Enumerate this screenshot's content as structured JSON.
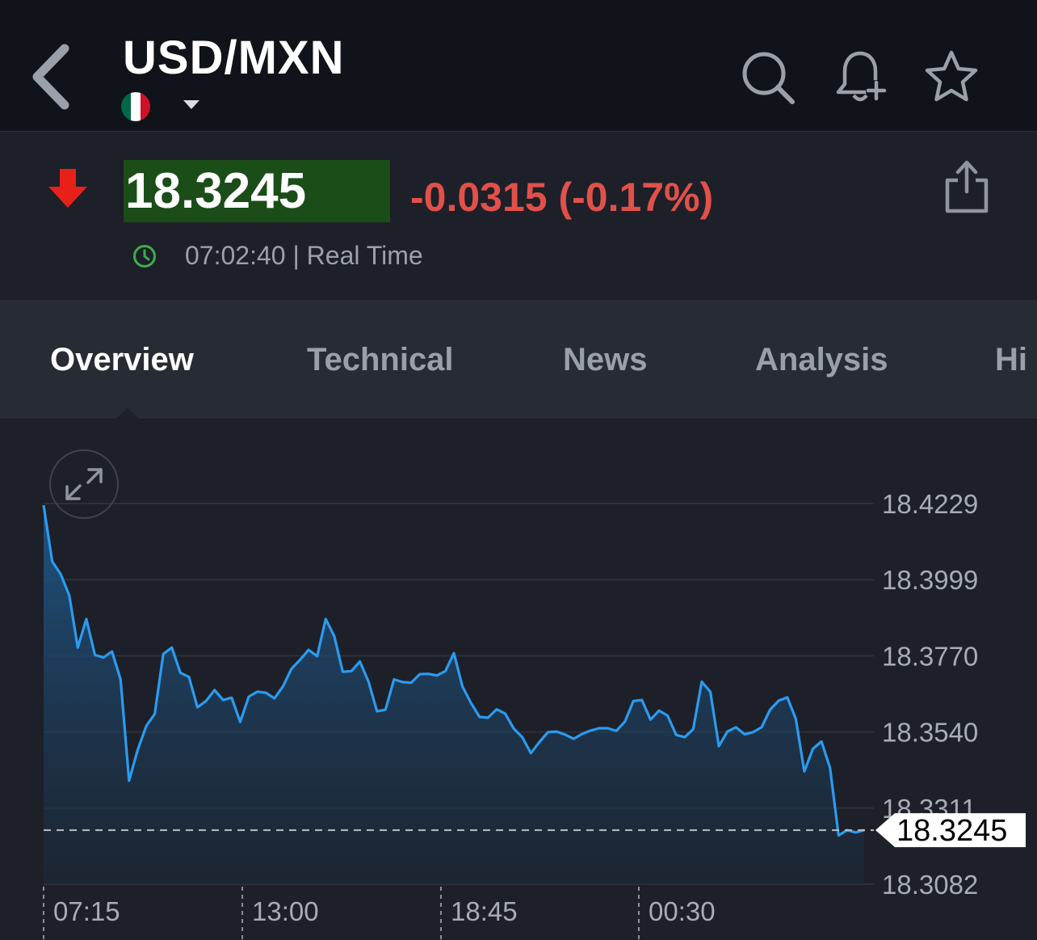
{
  "header": {
    "title": "USD/MXN",
    "flag_colors": [
      "#006847",
      "#ffffff",
      "#ce1126"
    ],
    "icons": [
      "back-icon",
      "search-icon",
      "add-alert-icon",
      "star-icon"
    ]
  },
  "quote": {
    "price": "18.3245",
    "change": "-0.0315 (-0.17%)",
    "time": "07:02:40 | Real Time",
    "direction": "down",
    "colors": {
      "down": "#e2504a",
      "price_bg": "#1b4d19",
      "clock": "#3fae49"
    }
  },
  "tabs": [
    {
      "label": "Overview",
      "active": true
    },
    {
      "label": "Technical",
      "active": false
    },
    {
      "label": "News",
      "active": false
    },
    {
      "label": "Analysis",
      "active": false
    },
    {
      "label": "Hi",
      "active": false
    }
  ],
  "chart_data": {
    "type": "area",
    "title": "",
    "xlabel": "",
    "ylabel": "",
    "y_ticks": [
      "18.4229",
      "18.3999",
      "18.3770",
      "18.3540",
      "18.3311",
      "18.3082"
    ],
    "ylim": [
      18.3082,
      18.4229
    ],
    "x_ticks": [
      "07:15",
      "13:00",
      "18:45",
      "00:30"
    ],
    "current_value_label": "18.3245",
    "current_value": 18.3245,
    "line_color": "#2b9bf0",
    "grid": true,
    "series": [
      {
        "values": [
          18.4224,
          18.4055,
          18.4016,
          18.3952,
          18.3795,
          18.3881,
          18.3773,
          18.3765,
          18.3783,
          18.3699,
          18.3394,
          18.3486,
          18.3558,
          18.3595,
          18.3776,
          18.3795,
          18.3719,
          18.3707,
          18.3615,
          18.3634,
          18.3667,
          18.3637,
          18.3644,
          18.3571,
          18.3647,
          18.3662,
          18.3659,
          18.3642,
          18.3678,
          18.3731,
          18.3758,
          18.3788,
          18.3769,
          18.3881,
          18.383,
          18.3722,
          18.3724,
          18.3753,
          18.3693,
          18.3603,
          18.3608,
          18.3699,
          18.3691,
          18.3689,
          18.3715,
          18.3716,
          18.3711,
          18.3724,
          18.3778,
          18.3678,
          18.3628,
          18.3586,
          18.3584,
          18.3609,
          18.3596,
          18.3551,
          18.3525,
          18.3477,
          18.351,
          18.354,
          18.3542,
          18.3533,
          18.352,
          18.3535,
          18.3545,
          18.3552,
          18.3552,
          18.3544,
          18.3572,
          18.3634,
          18.3637,
          18.3578,
          18.3605,
          18.359,
          18.3532,
          18.3525,
          18.3549,
          18.3692,
          18.3662,
          18.3498,
          18.3542,
          18.3555,
          18.3534,
          18.354,
          18.3555,
          18.3608,
          18.3635,
          18.3645,
          18.3581,
          18.3422,
          18.349,
          18.3512,
          18.3433,
          18.3229,
          18.3245,
          18.3238,
          18.3245
        ]
      }
    ]
  }
}
